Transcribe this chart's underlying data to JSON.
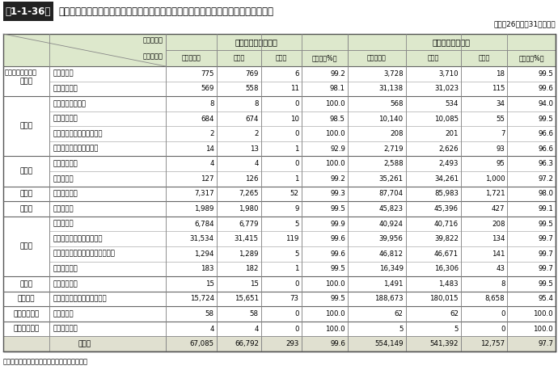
{
  "title_prefix": "第1-1-36表",
  "title_text": "全国における特定防火対象物のスプリンクラー設備及び自動火災報知設備の設置状況",
  "subtitle": "（平成26年３月31日現在）",
  "footnote": "（備考）「防火対象物実態等調査」により作成",
  "rows": [
    {
      "group": "（一）",
      "sub": "イ　劇場等",
      "sp_req": "775",
      "sp_set": "769",
      "sp_vio": "6",
      "sp_rate": "99.2",
      "af_req": "3,728",
      "af_set": "3,710",
      "af_vio": "18",
      "af_rate": "99.5"
    },
    {
      "group": "",
      "sub": "ロ　公会堂等",
      "sp_req": "569",
      "sp_set": "558",
      "sp_vio": "11",
      "sp_rate": "98.1",
      "af_req": "31,138",
      "af_set": "31,023",
      "af_vio": "115",
      "af_rate": "99.6"
    },
    {
      "group": "（二）",
      "sub": "イ　キャバレー等",
      "sp_req": "8",
      "sp_set": "8",
      "sp_vio": "0",
      "sp_rate": "100.0",
      "af_req": "568",
      "af_set": "534",
      "af_vio": "34",
      "af_rate": "94.0"
    },
    {
      "group": "",
      "sub": "ロ　遊技場等",
      "sp_req": "684",
      "sp_set": "674",
      "sp_vio": "10",
      "sp_rate": "98.5",
      "af_req": "10,140",
      "af_set": "10,085",
      "af_vio": "55",
      "af_rate": "99.5"
    },
    {
      "group": "",
      "sub": "ハ　性風俗特殊営業店舗等",
      "sp_req": "2",
      "sp_set": "2",
      "sp_vio": "0",
      "sp_rate": "100.0",
      "af_req": "208",
      "af_set": "201",
      "af_vio": "7",
      "af_rate": "96.6"
    },
    {
      "group": "",
      "sub": "ニ　カラオケボックス等",
      "sp_req": "14",
      "sp_set": "13",
      "sp_vio": "1",
      "sp_rate": "92.9",
      "af_req": "2,719",
      "af_set": "2,626",
      "af_vio": "93",
      "af_rate": "96.6"
    },
    {
      "group": "（三）",
      "sub": "イ　料理店等",
      "sp_req": "4",
      "sp_set": "4",
      "sp_vio": "0",
      "sp_rate": "100.0",
      "af_req": "2,588",
      "af_set": "2,493",
      "af_vio": "95",
      "af_rate": "96.3"
    },
    {
      "group": "",
      "sub": "ロ　飲食店",
      "sp_req": "127",
      "sp_set": "126",
      "sp_vio": "1",
      "sp_rate": "99.2",
      "af_req": "35,261",
      "af_set": "34,261",
      "af_vio": "1,000",
      "af_rate": "97.2"
    },
    {
      "group": "（四）",
      "sub": "　　百貨店等",
      "sp_req": "7,317",
      "sp_set": "7,265",
      "sp_vio": "52",
      "sp_rate": "99.3",
      "af_req": "87,704",
      "af_set": "85,983",
      "af_vio": "1,721",
      "af_rate": "98.0"
    },
    {
      "group": "（五）",
      "sub": "イ　旅館等",
      "sp_req": "1,989",
      "sp_set": "1,980",
      "sp_vio": "9",
      "sp_rate": "99.5",
      "af_req": "45,823",
      "af_set": "45,396",
      "af_vio": "427",
      "af_rate": "99.1"
    },
    {
      "group": "（六）",
      "sub": "イ　病院等",
      "sp_req": "6,784",
      "sp_set": "6,779",
      "sp_vio": "5",
      "sp_rate": "99.9",
      "af_req": "40,924",
      "af_set": "40,716",
      "af_vio": "208",
      "af_rate": "99.5"
    },
    {
      "group": "",
      "sub": "ロ　特別養護老人ホーム等",
      "sp_req": "31,534",
      "sp_set": "31,415",
      "sp_vio": "119",
      "sp_rate": "99.6",
      "af_req": "39,956",
      "af_set": "39,822",
      "af_vio": "134",
      "af_rate": "99.7"
    },
    {
      "group": "",
      "sub": "ハ　老人デイサービスセンター等",
      "sp_req": "1,294",
      "sp_set": "1,289",
      "sp_vio": "5",
      "sp_rate": "99.6",
      "af_req": "46,812",
      "af_set": "46,671",
      "af_vio": "141",
      "af_rate": "99.7"
    },
    {
      "group": "",
      "sub": "ニ　幼稚園等",
      "sp_req": "183",
      "sp_set": "182",
      "sp_vio": "1",
      "sp_rate": "99.5",
      "af_req": "16,349",
      "af_set": "16,306",
      "af_vio": "43",
      "af_rate": "99.7"
    },
    {
      "group": "（九）",
      "sub": "イ　特殊浴場",
      "sp_req": "15",
      "sp_set": "15",
      "sp_vio": "0",
      "sp_rate": "100.0",
      "af_req": "1,491",
      "af_set": "1,483",
      "af_vio": "8",
      "af_rate": "99.5"
    },
    {
      "group": "（十六）",
      "sub": "イ　特定複合用途防火対象物",
      "sp_req": "15,724",
      "sp_set": "15,651",
      "sp_vio": "73",
      "sp_rate": "99.5",
      "af_req": "188,673",
      "af_set": "180,015",
      "af_vio": "8,658",
      "af_rate": "95.4"
    },
    {
      "group": "（十六の二）",
      "sub": "　　地下街",
      "sp_req": "58",
      "sp_set": "58",
      "sp_vio": "0",
      "sp_rate": "100.0",
      "af_req": "62",
      "af_set": "62",
      "af_vio": "0",
      "af_rate": "100.0"
    },
    {
      "group": "（十六の三）",
      "sub": "　　準地下街",
      "sp_req": "4",
      "sp_set": "4",
      "sp_vio": "0",
      "sp_rate": "100.0",
      "af_req": "5",
      "af_set": "5",
      "af_vio": "0",
      "af_rate": "100.0"
    }
  ],
  "total_row": {
    "sp_req": "67,085",
    "sp_set": "66,792",
    "sp_vio": "293",
    "sp_rate": "99.6",
    "af_req": "554,149",
    "af_set": "541,392",
    "af_vio": "12,757",
    "af_rate": "97.7"
  },
  "bg_header": "#dde8cc",
  "bg_white": "#ffffff",
  "bg_total": "#e0e0d0",
  "title_box_bg": "#222222",
  "title_box_fg": "#ffffff"
}
